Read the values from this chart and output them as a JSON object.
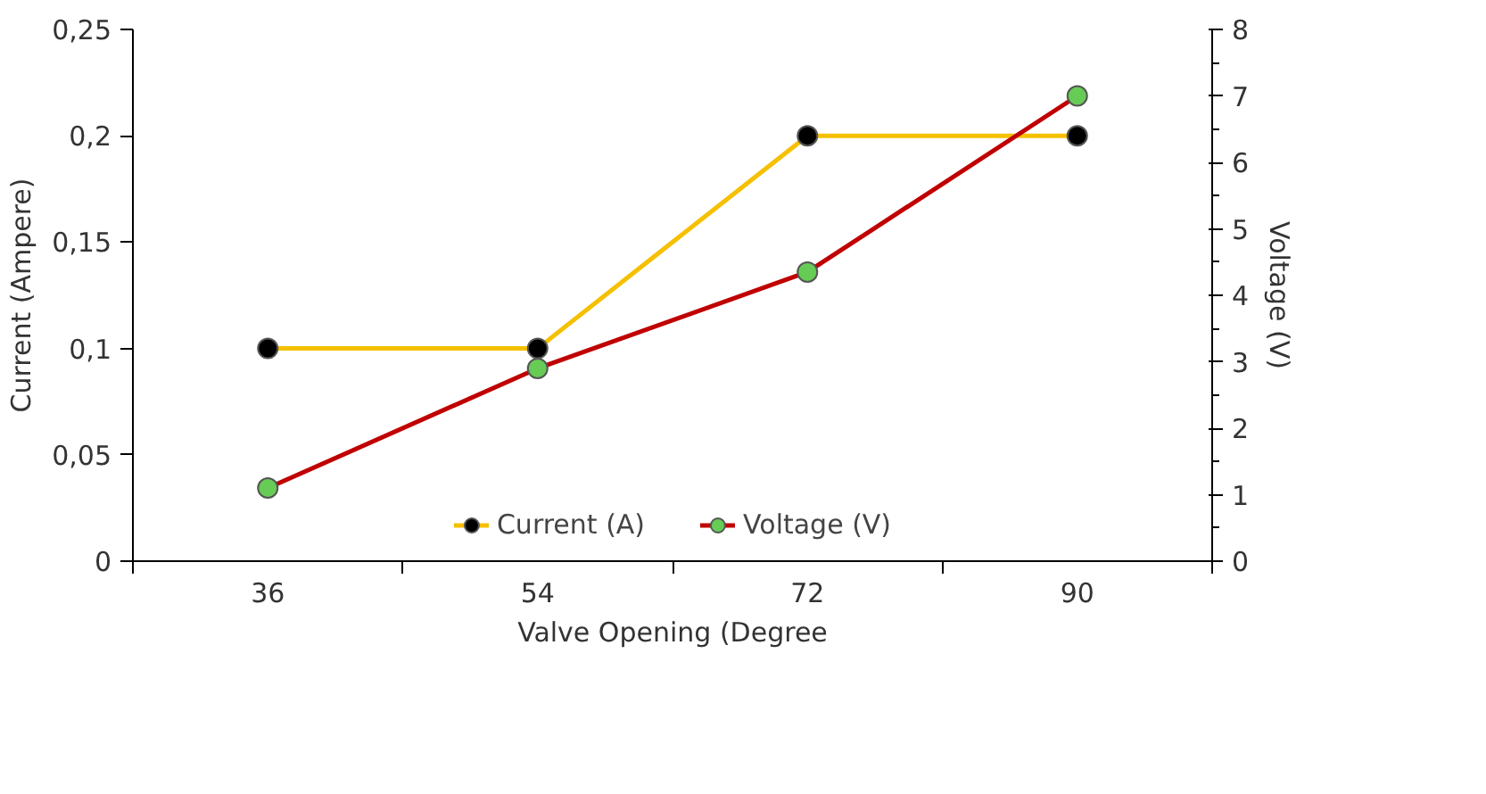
{
  "chart_data": {
    "type": "line",
    "xlabel": "Valve Opening (Degree",
    "ylabel": "Current (Ampere)",
    "y2label": "Voltage (V)",
    "categories": [
      "36",
      "54",
      "72",
      "90"
    ],
    "series": [
      {
        "name": "Current (A)",
        "color": "#f5c000",
        "colors": [
          "#000000",
          "#000000",
          "#000000",
          "#000000"
        ],
        "values": [
          0.1,
          0.1,
          0.2,
          0.2
        ]
      },
      {
        "name": "Voltage (V)",
        "color": "#c00000",
        "colors": [
          "#66cc55",
          "#66cc55",
          "#66cc55",
          "#66cc55"
        ],
        "values": [
          1.1,
          2.9,
          4.35,
          7.0
        ],
        "axis": "y2"
      }
    ],
    "ylim": [
      0,
      0.25
    ],
    "yticks": [
      0,
      {
        "value": 0.05,
        "label": "0,05"
      },
      {
        "value": 0.1,
        "label": "0,1"
      },
      {
        "value": 0.15,
        "label": "0,15"
      },
      {
        "value": 0.2,
        "label": "0,2"
      },
      {
        "value": 0.25,
        "label": "0,25"
      }
    ],
    "y2lim": [
      0,
      8
    ],
    "y2ticks": [
      0,
      1,
      2,
      3,
      4,
      5,
      6,
      7,
      8
    ],
    "grid": false,
    "legend": "bottom",
    "marker": "circle",
    "line_style": "solid"
  }
}
